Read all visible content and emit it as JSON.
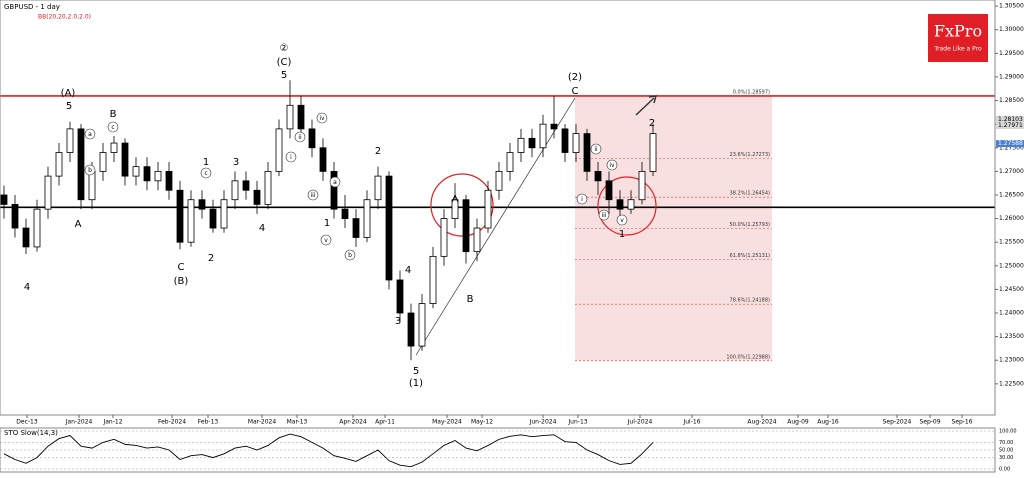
{
  "chart_data": {
    "type": "candlestick",
    "title": "GBPUSD - 1 day",
    "indicator_label": "BB(20,20,2.0,2.0)",
    "logo": {
      "brand": "FxPro",
      "tagline": "Trade Like a Pro"
    },
    "x_labels": [
      "Dec-13",
      "Jan-2024",
      "Jan-12",
      "Feb-2024",
      "Feb-13",
      "Mar-2024",
      "Mar-13",
      "Apr-2024",
      "Apr-11",
      "May-2024",
      "May-12",
      "Jun-2024",
      "Jun-13",
      "Jul-2024",
      "Jul-16",
      "Aug-2024",
      "Aug-09",
      "Aug-16",
      "Sep-2024",
      "Sep-09",
      "Sep-16"
    ],
    "ylim": [
      1.2184,
      1.3063
    ],
    "yticks": [
      {
        "value": 1.305,
        "label": "1.30500"
      },
      {
        "value": 1.3,
        "label": "1.30000"
      },
      {
        "value": 1.295,
        "label": "1.29500"
      },
      {
        "value": 1.29,
        "label": "1.29000"
      },
      {
        "value": 1.285,
        "label": "1.28500"
      },
      {
        "value": 1.28,
        "label": "1.28000"
      },
      {
        "value": 1.275,
        "label": "1.27500"
      },
      {
        "value": 1.27,
        "label": "1.27000"
      },
      {
        "value": 1.265,
        "label": "1.26500"
      },
      {
        "value": 1.26,
        "label": "1.26000"
      },
      {
        "value": 1.255,
        "label": "1.25500"
      },
      {
        "value": 1.25,
        "label": "1.25000"
      },
      {
        "value": 1.245,
        "label": "1.24500"
      },
      {
        "value": 1.24,
        "label": "1.24000"
      },
      {
        "value": 1.235,
        "label": "1.23500"
      },
      {
        "value": 1.23,
        "label": "1.23000"
      },
      {
        "value": 1.225,
        "label": "1.22500"
      }
    ],
    "candles": [
      [
        1.265,
        1.267,
        1.26,
        1.263
      ],
      [
        1.263,
        1.265,
        1.256,
        1.258
      ],
      [
        1.258,
        1.26,
        1.2525,
        1.254
      ],
      [
        1.254,
        1.264,
        1.253,
        1.262
      ],
      [
        1.262,
        1.271,
        1.26,
        1.269
      ],
      [
        1.269,
        1.276,
        1.267,
        1.274
      ],
      [
        1.274,
        1.2805,
        1.272,
        1.279
      ],
      [
        1.279,
        1.28,
        1.262,
        1.264
      ],
      [
        1.264,
        1.272,
        1.262,
        1.27
      ],
      [
        1.27,
        1.276,
        1.268,
        1.274
      ],
      [
        1.274,
        1.2775,
        1.272,
        1.276
      ],
      [
        1.276,
        1.277,
        1.267,
        1.269
      ],
      [
        1.269,
        1.273,
        1.267,
        1.271
      ],
      [
        1.271,
        1.273,
        1.266,
        1.268
      ],
      [
        1.268,
        1.272,
        1.266,
        1.27
      ],
      [
        1.27,
        1.272,
        1.264,
        1.266
      ],
      [
        1.266,
        1.268,
        1.2535,
        1.255
      ],
      [
        1.255,
        1.266,
        1.254,
        1.264
      ],
      [
        1.264,
        1.266,
        1.26,
        1.262
      ],
      [
        1.262,
        1.264,
        1.257,
        1.258
      ],
      [
        1.258,
        1.266,
        1.257,
        1.264
      ],
      [
        1.264,
        1.27,
        1.262,
        1.268
      ],
      [
        1.268,
        1.27,
        1.264,
        1.266
      ],
      [
        1.266,
        1.268,
        1.261,
        1.263
      ],
      [
        1.263,
        1.272,
        1.262,
        1.27
      ],
      [
        1.27,
        1.281,
        1.269,
        1.279
      ],
      [
        1.279,
        1.2893,
        1.277,
        1.284
      ],
      [
        1.284,
        1.286,
        1.277,
        1.279
      ],
      [
        1.279,
        1.281,
        1.273,
        1.275
      ],
      [
        1.275,
        1.277,
        1.268,
        1.27
      ],
      [
        1.27,
        1.272,
        1.26,
        1.262
      ],
      [
        1.262,
        1.265,
        1.258,
        1.26
      ],
      [
        1.26,
        1.262,
        1.254,
        1.256
      ],
      [
        1.256,
        1.266,
        1.255,
        1.264
      ],
      [
        1.264,
        1.271,
        1.262,
        1.269
      ],
      [
        1.269,
        1.27,
        1.245,
        1.247
      ],
      [
        1.247,
        1.249,
        1.238,
        1.24
      ],
      [
        1.24,
        1.242,
        1.23,
        1.233
      ],
      [
        1.233,
        1.244,
        1.232,
        1.242
      ],
      [
        1.242,
        1.254,
        1.241,
        1.252
      ],
      [
        1.252,
        1.262,
        1.25,
        1.26
      ],
      [
        1.26,
        1.2675,
        1.258,
        1.264
      ],
      [
        1.264,
        1.265,
        1.2505,
        1.253
      ],
      [
        1.253,
        1.26,
        1.251,
        1.258
      ],
      [
        1.258,
        1.268,
        1.257,
        1.266
      ],
      [
        1.266,
        1.272,
        1.264,
        1.27
      ],
      [
        1.27,
        1.276,
        1.268,
        1.274
      ],
      [
        1.274,
        1.279,
        1.272,
        1.277
      ],
      [
        1.277,
        1.279,
        1.273,
        1.275
      ],
      [
        1.275,
        1.282,
        1.273,
        1.28
      ],
      [
        1.28,
        1.286,
        1.277,
        1.279
      ],
      [
        1.279,
        1.28,
        1.272,
        1.274
      ],
      [
        1.274,
        1.28,
        1.272,
        1.278
      ],
      [
        1.278,
        1.279,
        1.268,
        1.27
      ],
      [
        1.27,
        1.272,
        1.265,
        1.268
      ],
      [
        1.268,
        1.27,
        1.261,
        1.264
      ],
      [
        1.264,
        1.266,
        1.26,
        1.262
      ],
      [
        1.262,
        1.266,
        1.261,
        1.264
      ],
      [
        1.264,
        1.272,
        1.263,
        1.27
      ],
      [
        1.27,
        1.28,
        1.269,
        1.278
      ]
    ],
    "horizontal_lines": [
      {
        "value": 1.28597,
        "color": "#e02020"
      },
      {
        "value": 1.2624,
        "color": "#000000"
      }
    ],
    "fibonacci": [
      {
        "value": 1.28597,
        "label": "0.0%(1.28597)"
      },
      {
        "value": 1.27273,
        "label": "23.6%(1.27273)"
      },
      {
        "value": 1.26454,
        "label": "38.2%(1.26454)"
      },
      {
        "value": 1.25793,
        "label": "50.0%(1.25793)"
      },
      {
        "value": 1.25131,
        "label": "61.8%(1.25131)"
      },
      {
        "value": 1.24188,
        "label": "78.6%(1.24188)"
      },
      {
        "value": 1.22988,
        "label": "100.0%(1.22988)"
      }
    ],
    "price_markers": [
      {
        "value": 1.28103,
        "color": "#d8d8d8"
      },
      {
        "value": 1.27971,
        "color": "#d8d8d8"
      },
      {
        "value": 1.27588,
        "color": "#4a7fd0"
      }
    ],
    "wave_labels": [
      "(A)",
      "5",
      "B",
      "A",
      "4",
      "C",
      "(B)",
      "1",
      "2",
      "3",
      "4",
      "②",
      "(C)",
      "5",
      "2",
      "1",
      "4",
      "3",
      "5",
      "(1)",
      "A",
      "B",
      "(2)",
      "C",
      "2",
      "1"
    ],
    "minor_labels": [
      "a",
      "b",
      "c",
      "c",
      "i",
      "ii",
      "iii",
      "iv",
      "v",
      "a",
      "b",
      "i",
      "ii",
      "iii",
      "iv",
      "v"
    ],
    "stochastic": {
      "title": "STO Slow(14,3)",
      "ylim": [
        0,
        100
      ],
      "yticks": [
        {
          "value": 100,
          "label": "100.00"
        },
        {
          "value": 70,
          "label": "70.00"
        },
        {
          "value": 50,
          "label": "50.00"
        },
        {
          "value": 30,
          "label": "30.00"
        },
        {
          "value": 0,
          "label": "0.00"
        }
      ],
      "color": "#000000",
      "values": [
        40,
        25,
        15,
        30,
        60,
        80,
        88,
        60,
        55,
        70,
        78,
        65,
        62,
        55,
        58,
        50,
        25,
        35,
        38,
        30,
        40,
        55,
        60,
        50,
        62,
        82,
        92,
        85,
        70,
        55,
        35,
        28,
        20,
        35,
        50,
        22,
        10,
        6,
        18,
        40,
        62,
        75,
        55,
        48,
        62,
        78,
        86,
        90,
        85,
        88,
        90,
        72,
        70,
        50,
        38,
        22,
        12,
        15,
        40,
        70
      ]
    }
  }
}
